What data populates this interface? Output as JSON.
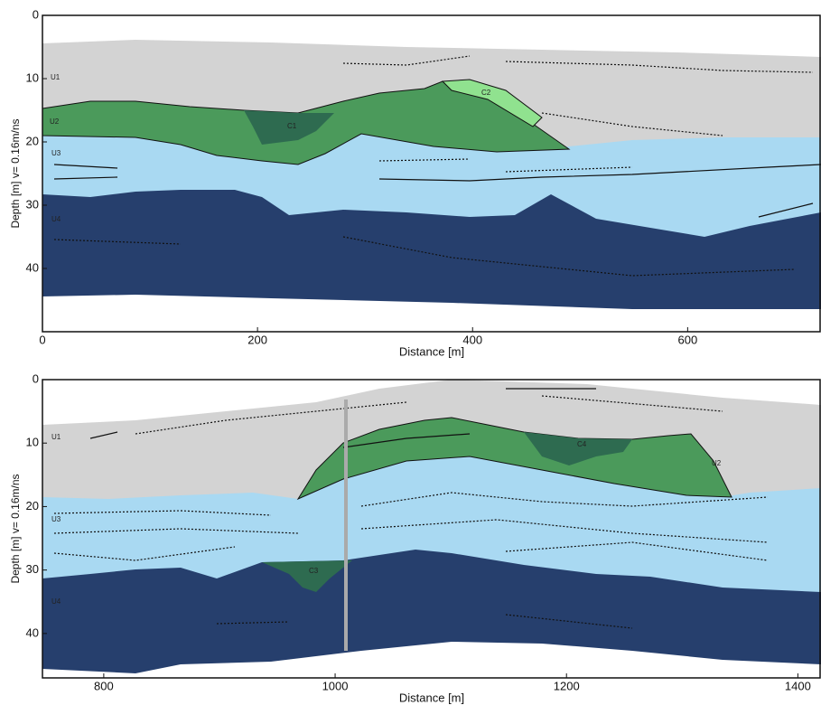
{
  "chart_data": [
    {
      "type": "section",
      "xlabel": "Distance [m]",
      "ylabel": "Depth [m] v= 0.16m/ns",
      "xlim": [
        0,
        724
      ],
      "ylim": [
        0,
        50
      ],
      "xticks": [
        0,
        200,
        400,
        600
      ],
      "yticks": [
        0,
        10,
        20,
        30,
        40
      ],
      "annotations": [
        "U1",
        "U2",
        "C1",
        "C2",
        "U3",
        "U4"
      ]
    },
    {
      "type": "section",
      "xlabel": "Distance [m]",
      "ylabel": "Depth [m] v= 0.16m/ns",
      "xlim": [
        747,
        1420
      ],
      "ylim": [
        0,
        47
      ],
      "xticks": [
        800,
        1000,
        1200,
        1400
      ],
      "yticks": [
        0,
        10,
        20,
        30,
        40
      ],
      "annotations": [
        "U1",
        "C4",
        "U2",
        "U3",
        "C3",
        "U4"
      ]
    }
  ]
}
